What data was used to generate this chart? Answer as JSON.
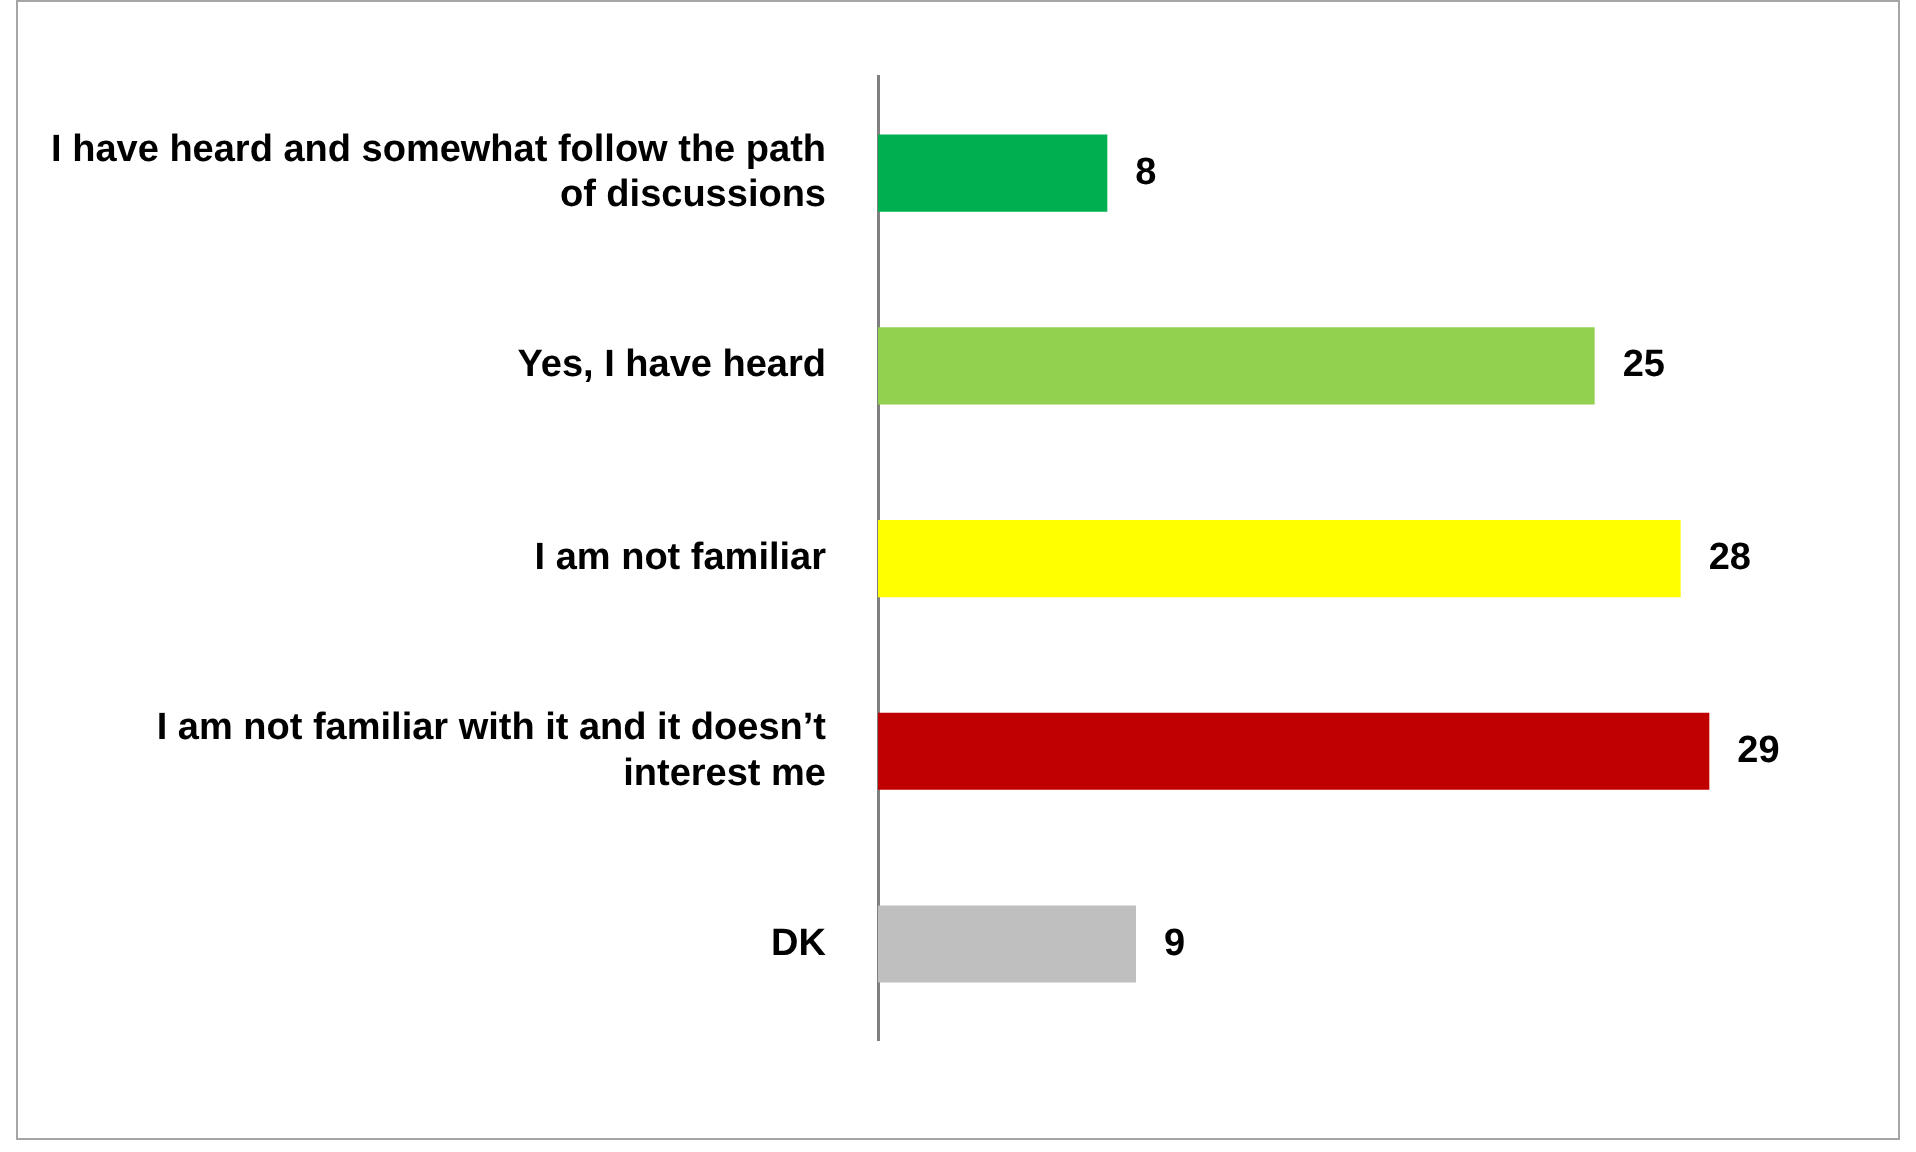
{
  "chart_data": {
    "type": "bar",
    "orientation": "horizontal",
    "categories": [
      "I have heard and somewhat follow the path of discussions",
      "Yes, I have heard",
      "I am not familiar",
      "I am not familiar with it and it doesn’t interest me",
      "DK"
    ],
    "values": [
      8,
      25,
      28,
      29,
      9
    ],
    "colors": [
      "#00b050",
      "#92d050",
      "#ffff00",
      "#c00000",
      "#bfbfbf"
    ],
    "tick_labels": "y",
    "legend": false,
    "data_labels": true
  }
}
